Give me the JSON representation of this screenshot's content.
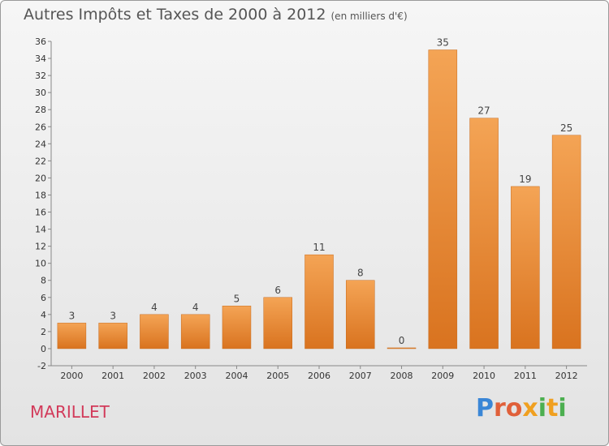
{
  "header": {
    "title": "Autres Impôts et Taxes de 2000 à 2012",
    "unit": "(en milliers d'€)"
  },
  "footer": {
    "commune": "MARILLET",
    "brand_letters": [
      "P",
      "r",
      "o",
      "x",
      "i",
      "t",
      "i"
    ]
  },
  "colors": {
    "bar_top": "#f4a455",
    "bar_bottom": "#d9731f",
    "commune": "#d23a5a"
  },
  "chart_data": {
    "type": "bar",
    "title": "Autres Impôts et Taxes de 2000 à 2012",
    "subtitle": "(en milliers d'€)",
    "categories": [
      "2000",
      "2001",
      "2002",
      "2003",
      "2004",
      "2005",
      "2006",
      "2007",
      "2008",
      "2009",
      "2010",
      "2011",
      "2012"
    ],
    "values": [
      3,
      3,
      4,
      4,
      5,
      6,
      11,
      8,
      0,
      35,
      27,
      19,
      25
    ],
    "ylim": [
      -2,
      36
    ],
    "yticks": [
      -2,
      0,
      2,
      4,
      6,
      8,
      10,
      12,
      14,
      16,
      18,
      20,
      22,
      24,
      26,
      28,
      30,
      32,
      34,
      36
    ],
    "grid": false,
    "xlabel": "",
    "ylabel": ""
  }
}
